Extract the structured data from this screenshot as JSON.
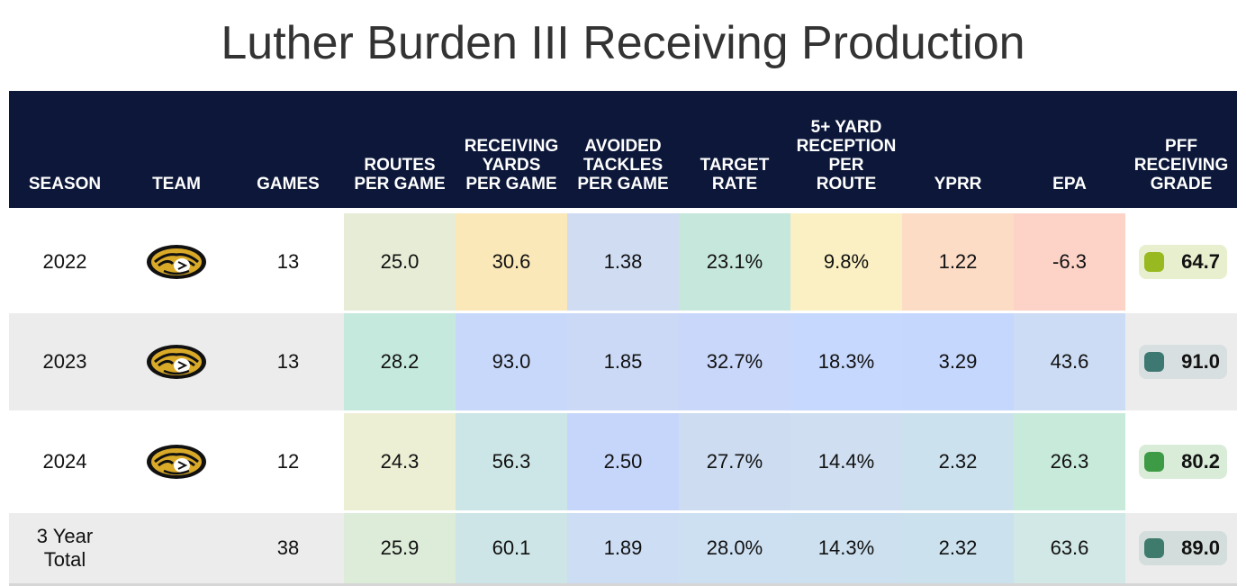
{
  "title": "Luther Burden III Receiving Production",
  "chart_data": {
    "type": "table",
    "title": "Luther Burden III Receiving Production",
    "columns": [
      "SEASON",
      "TEAM",
      "GAMES",
      "ROUTES\nPER GAME",
      "RECEIVING\nYARDS\nPER GAME",
      "AVOIDED\nTACKLES\nPER GAME",
      "TARGET\nRATE",
      "5+ YARD\nRECEPTION\nPER\nROUTE",
      "YPRR",
      "EPA",
      "PFF\nRECEIVING\nGRADE"
    ],
    "rows": [
      {
        "season": "2022",
        "team_logo": "missouri-tiger-logo",
        "games": "13",
        "routes_per_game": "25.0",
        "receiving_yards_per_game": "30.6",
        "avoided_tackles_per_game": "1.38",
        "target_rate": "23.1%",
        "five_plus_yard_reception_per_route": "9.8%",
        "yprr": "1.22",
        "epa": "-6.3",
        "pff_receiving_grade": "64.7"
      },
      {
        "season": "2023",
        "team_logo": "missouri-tiger-logo",
        "games": "13",
        "routes_per_game": "28.2",
        "receiving_yards_per_game": "93.0",
        "avoided_tackles_per_game": "1.85",
        "target_rate": "32.7%",
        "five_plus_yard_reception_per_route": "18.3%",
        "yprr": "3.29",
        "epa": "43.6",
        "pff_receiving_grade": "91.0"
      },
      {
        "season": "2024",
        "team_logo": "missouri-tiger-logo",
        "games": "12",
        "routes_per_game": "24.3",
        "receiving_yards_per_game": "56.3",
        "avoided_tackles_per_game": "2.50",
        "target_rate": "27.7%",
        "five_plus_yard_reception_per_route": "14.4%",
        "yprr": "2.32",
        "epa": "26.3",
        "pff_receiving_grade": "80.2"
      },
      {
        "season": "3 Year\nTotal",
        "team_logo": "",
        "games": "38",
        "routes_per_game": "25.9",
        "receiving_yards_per_game": "60.1",
        "avoided_tackles_per_game": "1.89",
        "target_rate": "28.0%",
        "five_plus_yard_reception_per_route": "14.3%",
        "yprr": "2.32",
        "epa": "63.6",
        "pff_receiving_grade": "89.0"
      }
    ],
    "cell_colors": [
      [
        "#e6ecd6",
        "#fbe8b8",
        "#cfdcf2",
        "#c6e8dc",
        "#fbf0c3",
        "#fddcc6",
        "#fdd3c8"
      ],
      [
        "#c5eadd",
        "#c8d8fb",
        "#cbd9f6",
        "#c9d8fa",
        "#c6d8fd",
        "#c6d7fd",
        "#ccdcf4"
      ],
      [
        "#ecefd4",
        "#cce5e6",
        "#c6d6fb",
        "#cddcf1",
        "#cfdff1",
        "#cce1ee",
        "#c7eadb"
      ],
      [
        "#dcecd9",
        "#cde5e6",
        "#cdddf4",
        "#cde0f2",
        "#cce0ef",
        "#cce1ee",
        "#d2e8e6"
      ]
    ],
    "grade_colors": [
      {
        "dot": "#98b91f",
        "pill": "#e8efce"
      },
      {
        "dot": "#3d7873",
        "pill": "#d8dfe0"
      },
      {
        "dot": "#3d9a45",
        "pill": "#d9ecd8"
      },
      {
        "dot": "#3f7b6d",
        "pill": "#d3dedc"
      }
    ]
  }
}
